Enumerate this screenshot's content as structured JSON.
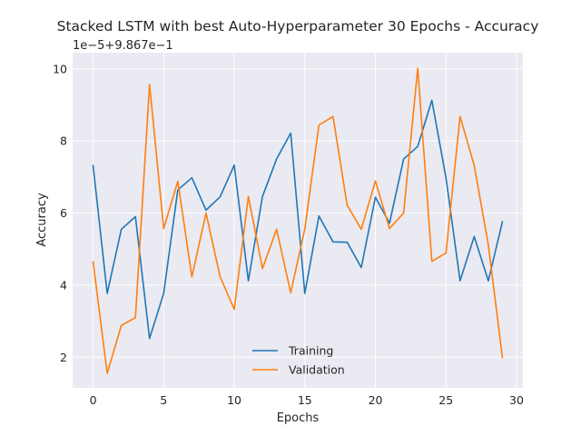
{
  "chart_data": {
    "type": "line",
    "title": "Stacked LSTM with best Auto-Hyperparameter 30 Epochs - Accuracy",
    "xlabel": "Epochs",
    "ylabel": "Accuracy",
    "offset_text": "1e−5+9.867e−1",
    "xlim": [
      -1.45,
      30.45
    ],
    "ylim": [
      1.15,
      10.45
    ],
    "x_ticks": [
      0,
      5,
      10,
      15,
      20,
      25,
      30
    ],
    "y_ticks": [
      2,
      4,
      6,
      8,
      10
    ],
    "x": [
      0,
      1,
      2,
      3,
      4,
      5,
      6,
      7,
      8,
      9,
      10,
      11,
      12,
      13,
      14,
      15,
      16,
      17,
      18,
      19,
      20,
      21,
      22,
      23,
      24,
      25,
      26,
      27,
      28,
      29
    ],
    "series": [
      {
        "name": "Training",
        "color": "#1f77b4",
        "values": [
          7.32,
          3.77,
          5.55,
          5.9,
          2.52,
          3.77,
          6.64,
          6.98,
          6.08,
          6.45,
          7.33,
          4.12,
          6.46,
          7.5,
          8.22,
          3.77,
          5.92,
          5.2,
          5.19,
          4.49,
          6.44,
          5.72,
          7.5,
          7.85,
          9.13,
          6.98,
          4.12,
          5.35,
          4.12,
          5.76
        ]
      },
      {
        "name": "Validation",
        "color": "#ff7f0e",
        "values": [
          4.65,
          1.55,
          2.88,
          3.1,
          9.57,
          5.57,
          6.88,
          4.23,
          6.0,
          4.23,
          3.33,
          6.46,
          4.46,
          5.55,
          3.79,
          5.56,
          8.44,
          8.68,
          6.22,
          5.55,
          6.89,
          5.57,
          6.0,
          10.02,
          4.66,
          4.89,
          8.68,
          7.32,
          5.12,
          1.99
        ]
      }
    ],
    "legend_position": "lower center",
    "grid": true
  }
}
